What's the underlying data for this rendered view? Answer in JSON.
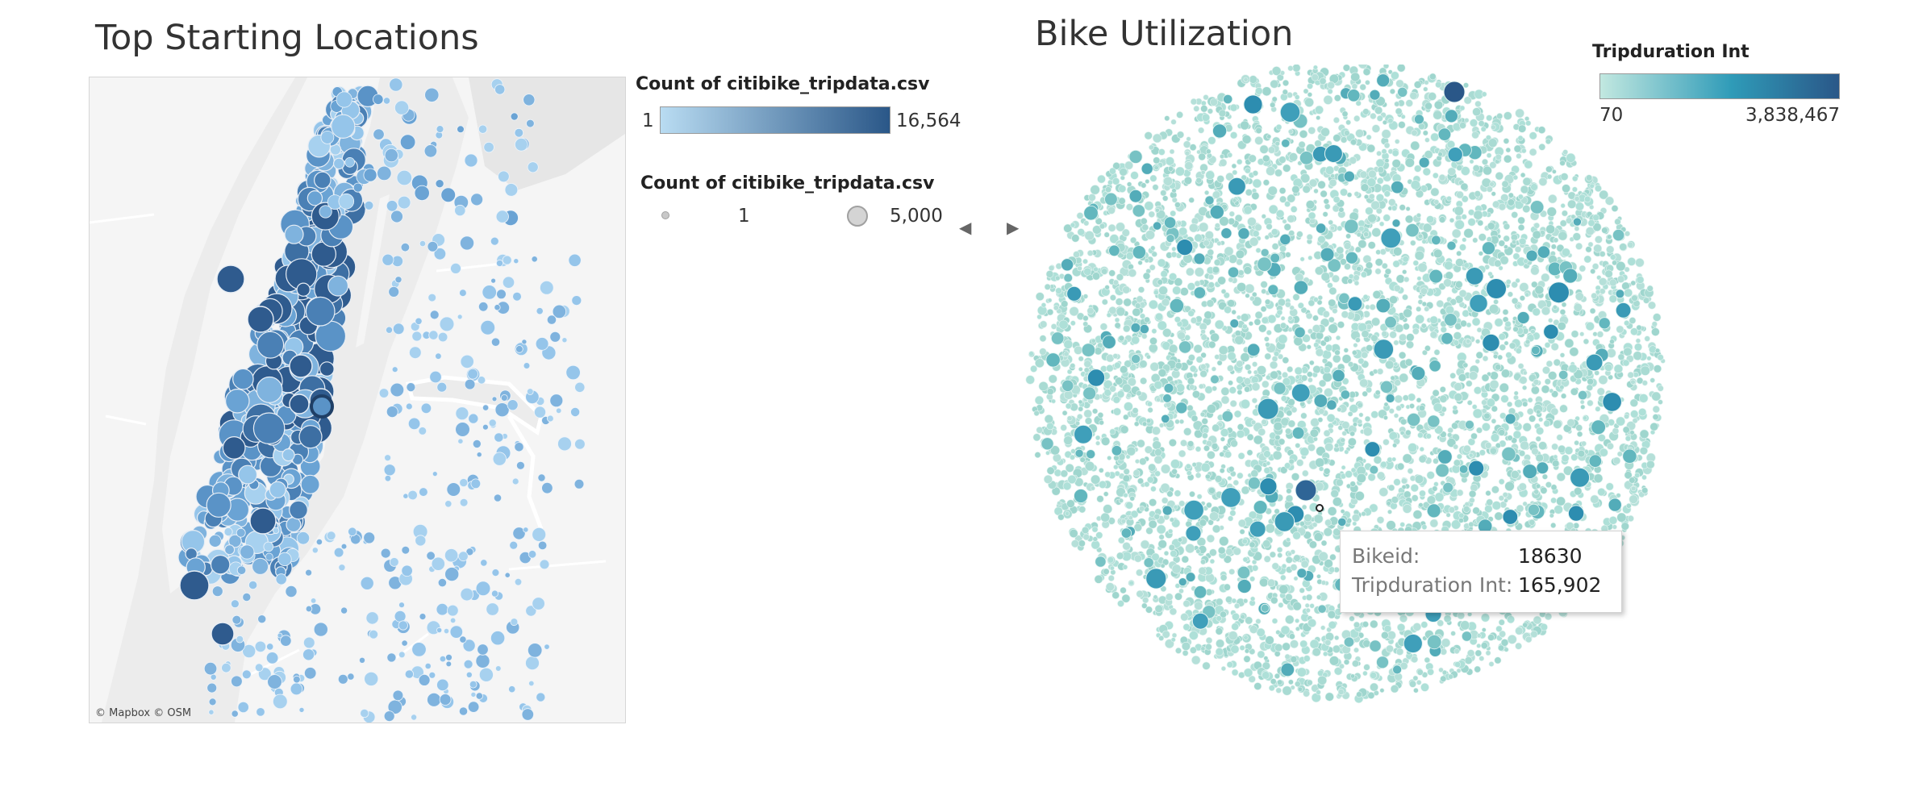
{
  "dashboard": {
    "left_title": "Top Starting Locations",
    "right_title": "Bike Utilization",
    "attribution": "© Mapbox © OSM",
    "nav_prev_icon": "triangle-left-icon",
    "nav_next_icon": "triangle-right-icon"
  },
  "legends": {
    "color_count": {
      "title": "Count of citibike_tripdata.csv",
      "min_label": "1",
      "max_label": "16,564",
      "min_color": "#b9dcf2",
      "max_color": "#2a5788"
    },
    "size_count": {
      "title": "Count of citibike_tripdata.csv",
      "min_label": "1",
      "max_label": "5,000"
    },
    "tripduration": {
      "title": "Tripduration Int",
      "min_label": "70",
      "max_label": "3,838,467",
      "min_color": "#c2e8e0",
      "max_color": "#2a5788"
    }
  },
  "tooltip": {
    "bikeid_label": "Bikeid:",
    "bikeid_value": "18630",
    "trip_label": "Tripduration Int:",
    "trip_value": "165,902"
  },
  "chart_data": [
    {
      "type": "scatter",
      "title": "Top Starting Locations",
      "encoding": {
        "color": "Count of citibike_tripdata.csv",
        "size": "Count of citibike_tripdata.csv"
      },
      "color_range": [
        1,
        16564
      ],
      "size_range": [
        1,
        5000
      ],
      "background": "map"
    },
    {
      "type": "scatter",
      "title": "Bike Utilization",
      "encoding": {
        "color": "Tripduration Int"
      },
      "color_range": [
        70,
        3838467
      ],
      "highlighted_mark": {
        "Bikeid": "18630",
        "Tripduration Int": 165902
      }
    }
  ]
}
